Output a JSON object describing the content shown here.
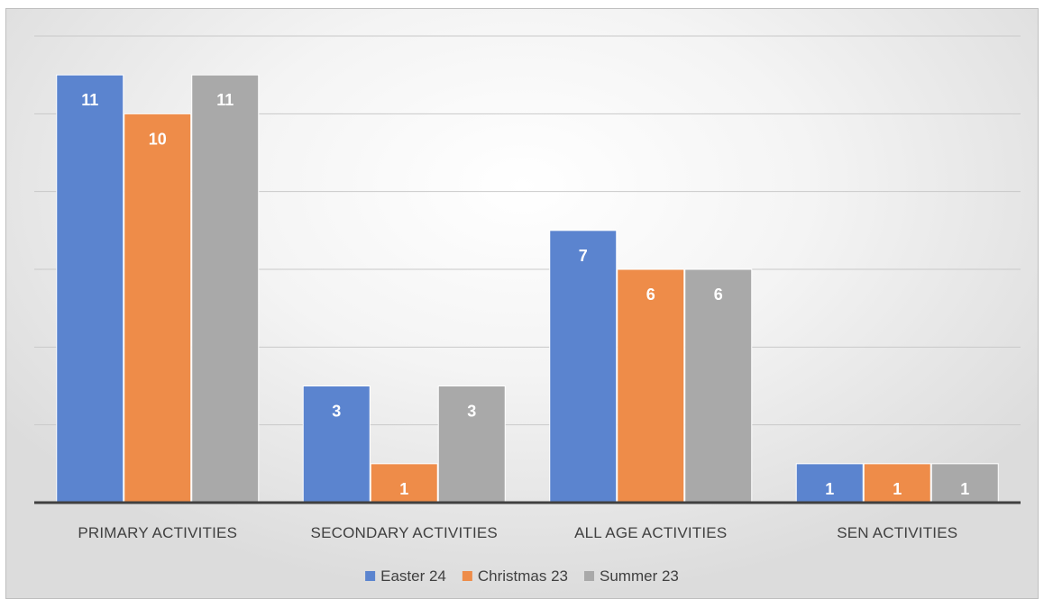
{
  "chart_data": {
    "type": "bar",
    "categories": [
      "PRIMARY ACTIVITIES",
      "SECONDARY ACTIVITIES",
      "ALL AGE ACTIVITIES",
      "SEN ACTIVITIES"
    ],
    "series": [
      {
        "name": "Easter 24",
        "color": "#5b84cf",
        "values": [
          11,
          3,
          7,
          1
        ]
      },
      {
        "name": "Christmas 23",
        "color": "#ee8c49",
        "values": [
          10,
          1,
          6,
          1
        ]
      },
      {
        "name": "Summer 23",
        "color": "#a9a9a9",
        "values": [
          11,
          3,
          6,
          1
        ]
      }
    ],
    "ylim": [
      0,
      12
    ],
    "grid": true,
    "data_labels": true,
    "legend_position": "bottom",
    "title": "",
    "xlabel": "",
    "ylabel": ""
  }
}
